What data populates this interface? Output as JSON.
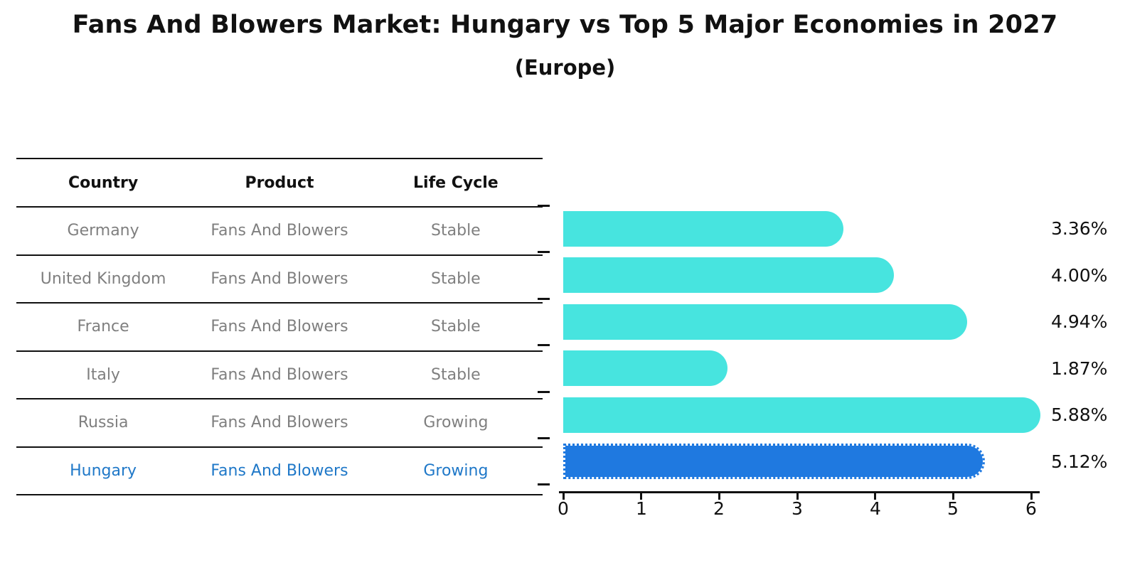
{
  "header": {
    "title": "Fans And Blowers Market: Hungary vs Top 5 Major Economies in 2027",
    "subtitle": "(Europe)"
  },
  "table": {
    "columns": [
      "Country",
      "Product",
      "Life Cycle"
    ],
    "rows": [
      {
        "country": "Germany",
        "product": "Fans And Blowers",
        "life_cycle": "Stable",
        "highlight": false
      },
      {
        "country": "United Kingdom",
        "product": "Fans And Blowers",
        "life_cycle": "Stable",
        "highlight": false
      },
      {
        "country": "France",
        "product": "Fans And Blowers",
        "life_cycle": "Stable",
        "highlight": false
      },
      {
        "country": "Italy",
        "product": "Fans And Blowers",
        "life_cycle": "Stable",
        "highlight": false
      },
      {
        "country": "Russia",
        "product": "Fans And Blowers",
        "life_cycle": "Growing",
        "highlight": false
      },
      {
        "country": "Hungary",
        "product": "Fans And Blowers",
        "life_cycle": "Growing",
        "highlight": true
      }
    ]
  },
  "chart_data": {
    "type": "bar",
    "orientation": "horizontal",
    "title": "Fans And Blowers Market: Hungary vs Top 5 Major Economies in 2027 (Europe)",
    "categories": [
      "Germany",
      "United Kingdom",
      "France",
      "Italy",
      "Russia",
      "Hungary"
    ],
    "values": [
      3.36,
      4.0,
      4.94,
      1.87,
      5.88,
      5.12
    ],
    "value_labels": [
      "3.36%",
      "4.00%",
      "4.94%",
      "1.87%",
      "5.88%",
      "5.12%"
    ],
    "highlighted_category": "Hungary",
    "xlabel": "",
    "ylabel": "",
    "xlim": [
      0,
      6
    ],
    "x_ticks": [
      "0",
      "1",
      "2",
      "3",
      "4",
      "5",
      "6"
    ],
    "grid": false,
    "legend": "none",
    "colors": {
      "bar": "#47e4df",
      "highlight_bar": "#1f79e0",
      "highlight_text": "#1f78c8",
      "row_text": "#7f7f7f",
      "text": "#111111"
    }
  }
}
